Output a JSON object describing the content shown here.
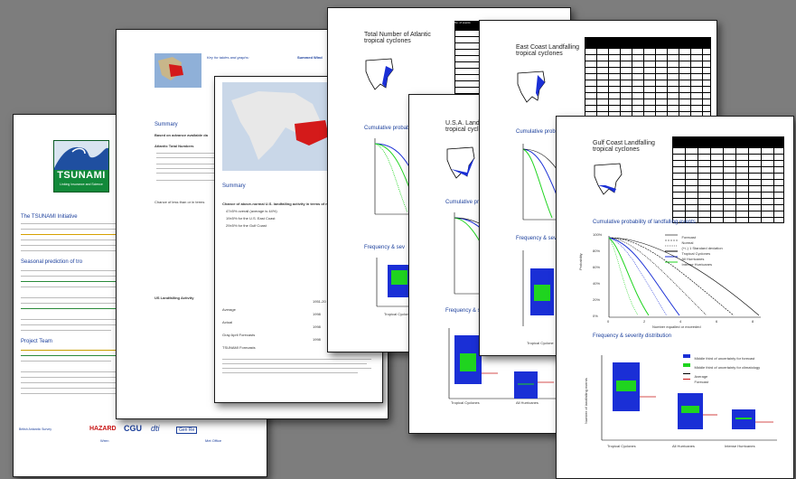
{
  "page1": {
    "logo_title": "TSUNAMI",
    "logo_subtitle": "Linking Insurance and Science",
    "initiative_heading": "The TSUNAMI Initiative",
    "seasonal_heading": "Seasonal prediction of tro",
    "team_heading": "Project Team",
    "sponsors": [
      "British Antarctic Survey",
      "HAZARD",
      "CGU",
      "dti",
      "Gen Re",
      "Wren",
      "Met Office"
    ]
  },
  "page2": {
    "key_label": "Key for tables and graphs:",
    "summed_label": "Summed Wind",
    "summary_heading": "Summary",
    "summary_intro": "Based on advance available da",
    "atlantic_label": "Atlantic Total Numbers",
    "chance_label": "Chance of less than or in terms",
    "us_landfalling_label": "US Landfalling Activity",
    "forecast_note": "A post-season assessment will be issued in December 2003.",
    "long_range_note": "Our long-range forecast for the 2004 Atlantic season will be issued on 2nd Dec"
  },
  "page3": {
    "summary_heading": "Summary",
    "stats": [
      {
        "label": "Average",
        "value": "1951-20"
      },
      {
        "label": "Actual",
        "value": "1998"
      },
      {
        "label": "Gray April Forecasts",
        "value": "1998"
      },
      {
        "label": "TSUNAMI Forecasts",
        "value": "1998"
      }
    ],
    "bullets": [
      "47±5% overall (average is 44%)",
      "19±5% for the U.S. East Coast",
      "29±5% for the Gulf Coast"
    ]
  },
  "page4": {
    "title_line1": "Total Number of Atlantic",
    "title_line2": "tropical cyclones",
    "cumulative_label": "Cumulative probab",
    "frequency_label": "Frequency & sev",
    "x_axis_label": "Tropical Cyclone",
    "y_axis_label": "Number of landfalling events"
  },
  "page5": {
    "title_line1": "U.S.A. Landfall",
    "title_line2": "tropical cyclo",
    "cumulative_label": "Cumulative pro",
    "frequency_label": "Frequency & se",
    "y_axis_label": "Probability",
    "x_axis_label": "Number equalled or exceeded",
    "categories": [
      "Tropical Cyclones",
      "All Hurricanes"
    ]
  },
  "page6": {
    "title_line1": "East Coast Landfalling",
    "title_line2": "tropical cyclones",
    "cumulative_label": "Cumulative probab",
    "frequency_label": "Frequency & sev",
    "x_axis_label": "Tropical Cyclone"
  },
  "page7": {
    "title_line1": "Gulf Coast Landfalling",
    "title_line2": "tropical cyclones",
    "cumulative_heading": "Cumulative probability of landfalling events",
    "legend": [
      "Forecast",
      "Normal",
      "(+/-) 1 Standard deviation",
      "Tropical Cyclones",
      "All Hurricanes",
      "Intense Hurricanes"
    ],
    "y_axis_label": "Probability",
    "x_axis_label": "Number equalled or exceeded",
    "frequency_heading": "Frequency & severity distribution",
    "freq_legend": [
      "Middle third of uncertainty for forecast",
      "Middle third of uncertainty for climatology",
      "Average",
      "Forecast"
    ],
    "freq_y_label": "Number of landfalling events",
    "categories": [
      "Tropical Cyclones",
      "All Hurricanes",
      "Intense Hurricanes"
    ],
    "y_ticks": [
      "100%",
      "80%",
      "60%",
      "40%",
      "20%",
      "0%"
    ],
    "x_ticks": [
      "0",
      "2",
      "4",
      "6",
      "8"
    ]
  },
  "colors": {
    "background": "#7d7d7d",
    "tropical": "#1a2fd6",
    "intense": "#1fd41f",
    "hurricane_red": "#c81414",
    "heading_blue": "#1b3f9c"
  }
}
